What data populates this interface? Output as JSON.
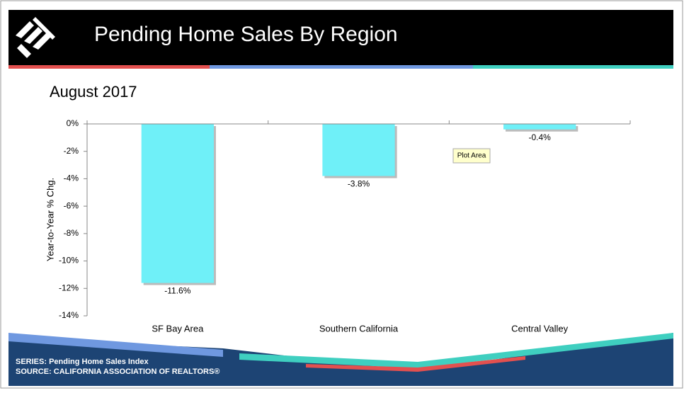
{
  "chart_data": {
    "type": "bar",
    "title": "Pending Home Sales By Region",
    "subtitle": "August 2017",
    "y_label": "Year-to-Year % Chg.",
    "categories": [
      "SF Bay Area",
      "Southern California",
      "Central Valley"
    ],
    "values": [
      -11.6,
      -3.8,
      -0.4
    ],
    "value_labels": [
      "-11.6%",
      "-3.8%",
      "-0.4%"
    ],
    "color": "#6ff0f8",
    "ylim": [
      -14,
      0
    ],
    "yticks": [
      {
        "value": 0,
        "label": "0%"
      },
      {
        "value": -2,
        "label": "-2%"
      },
      {
        "value": -4,
        "label": "-4%"
      },
      {
        "value": -6,
        "label": "-6%"
      },
      {
        "value": -8,
        "label": "-8%"
      },
      {
        "value": -10,
        "label": "-10%"
      },
      {
        "value": -12,
        "label": "-12%"
      },
      {
        "value": -14,
        "label": "-14%"
      }
    ],
    "grid": false
  },
  "tooltip": "Plot Area",
  "footer": {
    "series": "SERIES: Pending Home Sales Index",
    "source": "SOURCE:  CALIFORNIA ASSOCIATION OF REALTORS®"
  }
}
